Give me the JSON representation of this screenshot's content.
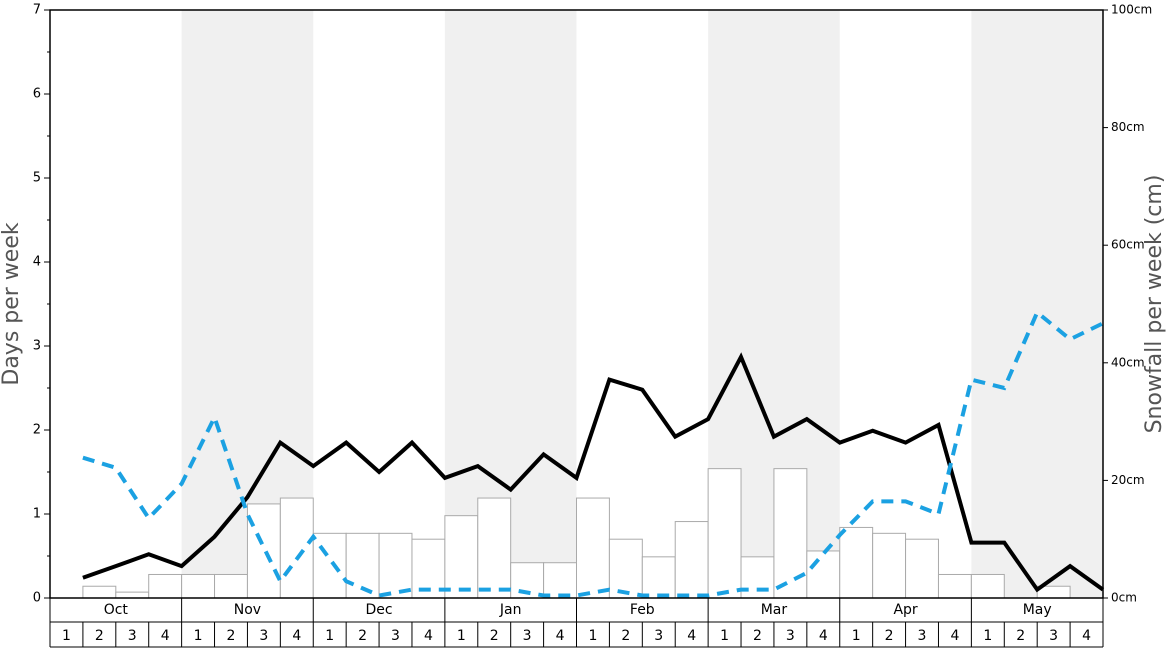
{
  "chart_data": {
    "type": "combo",
    "y_label": "Days per week",
    "y2_label": "Snowfall per week (cm)",
    "months": [
      "Oct",
      "Nov",
      "Dec",
      "Jan",
      "Feb",
      "Mar",
      "Apr",
      "May"
    ],
    "categories": [
      "1",
      "2",
      "3",
      "4",
      "1",
      "2",
      "3",
      "4",
      "1",
      "2",
      "3",
      "4",
      "1",
      "2",
      "3",
      "4",
      "1",
      "2",
      "3",
      "4",
      "1",
      "2",
      "3",
      "4",
      "1",
      "2",
      "3",
      "4",
      "1",
      "2",
      "3",
      "4"
    ],
    "ylim": [
      0,
      7
    ],
    "yticks": [
      0,
      1,
      2,
      3,
      4,
      5,
      6,
      7
    ],
    "yminorticks": [
      0.5,
      1.5,
      2.5,
      3.5,
      4.5,
      5.5,
      6.5
    ],
    "y2lim": [
      0,
      100
    ],
    "y2ticks": [
      {
        "value": 0,
        "label": "0cm"
      },
      {
        "value": 20,
        "label": "20cm"
      },
      {
        "value": 40,
        "label": "40cm"
      },
      {
        "value": 60,
        "label": "60cm"
      },
      {
        "value": 80,
        "label": "80cm"
      },
      {
        "value": 100,
        "label": "100cm"
      }
    ],
    "series": [
      {
        "type": "bar",
        "axis": "y2",
        "color": "#ffffff",
        "values": [
          0,
          2,
          1,
          4,
          4,
          4,
          16,
          17,
          11,
          11,
          11,
          10,
          14,
          17,
          6,
          6,
          17,
          10,
          7,
          13,
          22,
          7,
          22,
          8,
          12,
          11,
          10,
          4,
          4,
          0,
          2,
          0
        ]
      },
      {
        "type": "line",
        "axis": "y",
        "color": "#000000",
        "values": [
          0.24,
          0.38,
          0.52,
          0.38,
          0.73,
          1.2,
          1.85,
          1.57,
          1.85,
          1.5,
          1.85,
          1.43,
          1.57,
          1.29,
          1.71,
          1.43,
          2.6,
          2.48,
          1.92,
          2.13,
          2.87,
          1.92,
          2.13,
          1.85,
          1.99,
          1.85,
          2.06,
          0.66,
          0.66,
          0.1,
          0.38,
          0.1
        ]
      },
      {
        "type": "line",
        "axis": "y",
        "color": "#1ba1e2",
        "dashed": true,
        "values": [
          1.67,
          1.55,
          0.95,
          1.36,
          2.15,
          1.0,
          0.2,
          0.73,
          0.2,
          0.03,
          0.1,
          0.1,
          0.1,
          0.1,
          0.03,
          0.03,
          0.1,
          0.03,
          0.03,
          0.03,
          0.1,
          0.1,
          0.3,
          0.75,
          1.15,
          1.15,
          1.0,
          2.6,
          2.5,
          3.4,
          3.08,
          3.27
        ]
      }
    ]
  }
}
